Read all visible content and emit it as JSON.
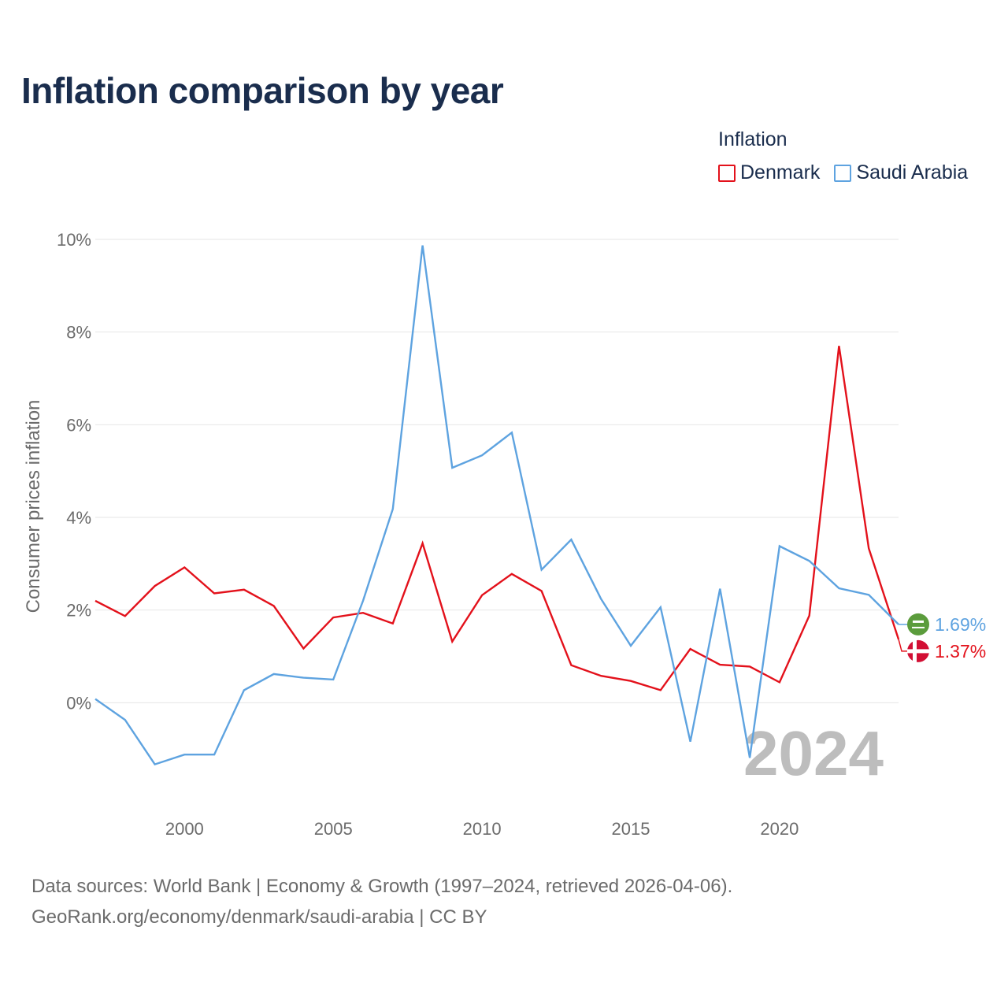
{
  "title": "Inflation comparison by year",
  "legend": {
    "title": "Inflation",
    "items": [
      {
        "label": "Denmark",
        "color": "#e3111b"
      },
      {
        "label": "Saudi Arabia",
        "color": "#5ea3e0"
      }
    ]
  },
  "footer": {
    "line1": "Data sources: World Bank | Economy & Growth (1997–2024, retrieved 2026-04-06).",
    "line2": "GeoRank.org/economy/denmark/saudi-arabia | CC BY"
  },
  "chart_data": {
    "type": "line",
    "title": "Inflation comparison by year",
    "xlabel": "",
    "ylabel": "Consumer prices inflation",
    "xlim": [
      1997,
      2024
    ],
    "ylim": [
      -2,
      10
    ],
    "y_ticks": [
      {
        "value": 0,
        "label": "0%"
      },
      {
        "value": 2,
        "label": "2%"
      },
      {
        "value": 4,
        "label": "4%"
      },
      {
        "value": 6,
        "label": "6%"
      },
      {
        "value": 8,
        "label": "8%"
      },
      {
        "value": 10,
        "label": "10%"
      }
    ],
    "x_ticks": [
      {
        "value": 2000,
        "label": "2000"
      },
      {
        "value": 2005,
        "label": "2005"
      },
      {
        "value": 2010,
        "label": "2010"
      },
      {
        "value": 2015,
        "label": "2015"
      },
      {
        "value": 2020,
        "label": "2020"
      }
    ],
    "grid": true,
    "legend_position": "top-right",
    "annotation_year": "2024",
    "x": [
      1997,
      1998,
      1999,
      2000,
      2001,
      2002,
      2003,
      2004,
      2005,
      2006,
      2007,
      2008,
      2009,
      2010,
      2011,
      2012,
      2013,
      2014,
      2015,
      2016,
      2017,
      2018,
      2019,
      2020,
      2021,
      2022,
      2023,
      2024
    ],
    "series": [
      {
        "name": "Denmark",
        "color": "#e3111b",
        "end_label": "1.37%",
        "flag": "denmark-flag-icon",
        "values": [
          2.2,
          1.87,
          2.52,
          2.92,
          2.36,
          2.44,
          2.09,
          1.17,
          1.84,
          1.94,
          1.71,
          3.44,
          1.32,
          2.32,
          2.78,
          2.41,
          0.81,
          0.58,
          0.47,
          0.27,
          1.16,
          0.82,
          0.78,
          0.44,
          1.88,
          7.7,
          3.33,
          1.37
        ]
      },
      {
        "name": "Saudi Arabia",
        "color": "#5ea3e0",
        "end_label": "1.69%",
        "flag": "saudi-arabia-flag-icon",
        "values": [
          0.08,
          -0.37,
          -1.33,
          -1.12,
          -1.12,
          0.27,
          0.62,
          0.54,
          0.5,
          2.2,
          4.18,
          9.87,
          5.07,
          5.34,
          5.83,
          2.87,
          3.52,
          2.24,
          1.23,
          2.06,
          -0.84,
          2.46,
          -1.19,
          3.38,
          3.06,
          2.47,
          2.33,
          1.69
        ]
      }
    ]
  }
}
